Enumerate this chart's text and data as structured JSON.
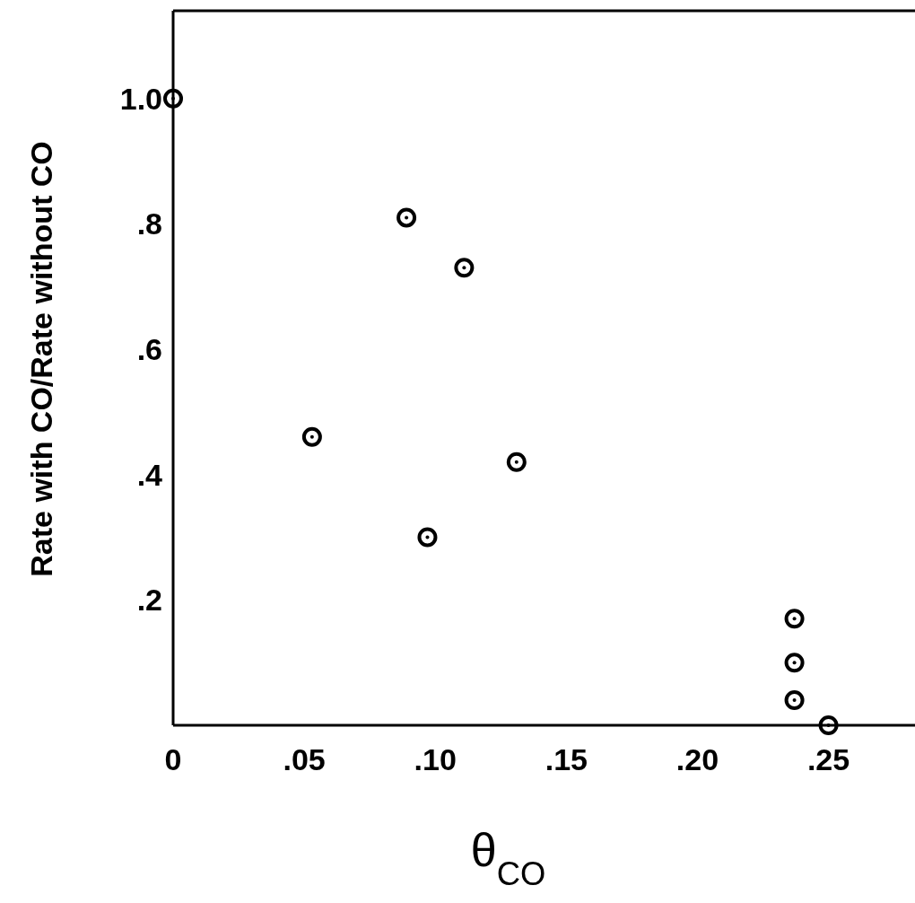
{
  "chart_data": {
    "type": "scatter",
    "xlabel": "θ$_{CO}$",
    "ylabel": "Rate with CO/Rate without CO",
    "x": [
      0.0,
      0.053,
      0.089,
      0.097,
      0.111,
      0.131,
      0.237,
      0.237,
      0.237,
      0.25
    ],
    "values": [
      1.0,
      0.46,
      0.81,
      0.3,
      0.73,
      0.42,
      0.17,
      0.1,
      0.04,
      0.0
    ],
    "color": "#000000",
    "marker": "circle",
    "grid": false,
    "xlim": [
      0,
      0.283
    ],
    "ylim": [
      0,
      1.14
    ],
    "xticks": [
      {
        "value": 0,
        "label": "0"
      },
      {
        "value": 0.05,
        "label": ".05"
      },
      {
        "value": 0.1,
        "label": ".10"
      },
      {
        "value": 0.15,
        "label": ".15"
      },
      {
        "value": 0.2,
        "label": ".20"
      },
      {
        "value": 0.25,
        "label": ".25"
      }
    ],
    "yticks": [
      {
        "value": 0.2,
        "label": ".2"
      },
      {
        "value": 0.4,
        "label": ".4"
      },
      {
        "value": 0.6,
        "label": ".6"
      },
      {
        "value": 0.8,
        "label": ".8"
      },
      {
        "value": 1.0,
        "label": "1.0"
      }
    ]
  }
}
